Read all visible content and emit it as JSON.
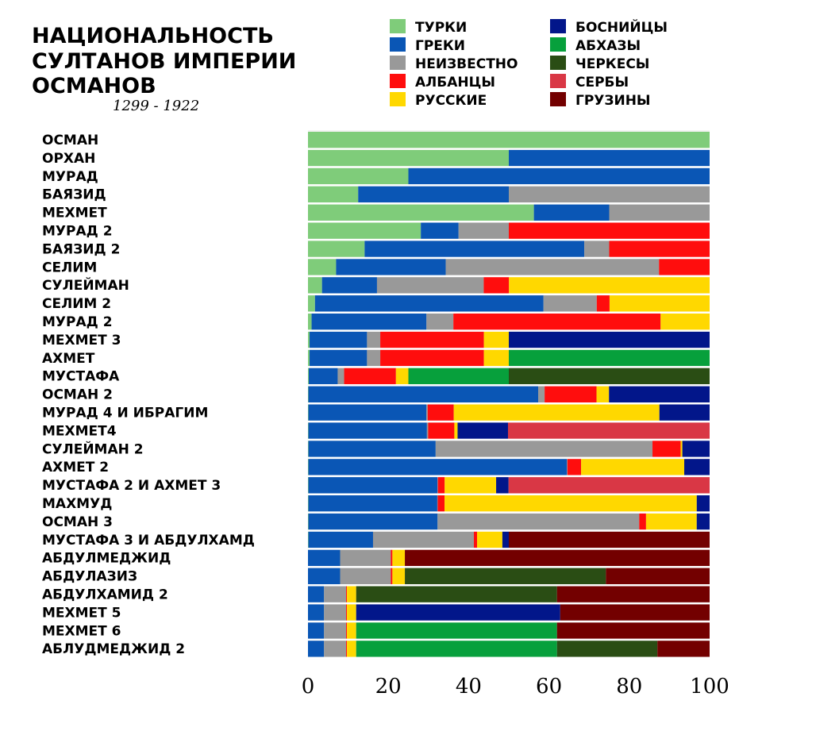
{
  "chart_data": {
    "type": "bar",
    "orientation": "horizontal",
    "stacked": true,
    "title_lines": [
      "НАЦИОНАЛЬНОСТЬ",
      "СУЛТАНОВ ИМПЕРИИ",
      "ОСМАНОВ"
    ],
    "subtitle": "1299 - 1922",
    "xlim": [
      0,
      100
    ],
    "xticks": [
      0,
      20,
      40,
      60,
      80,
      100
    ],
    "grid": false,
    "legend_position": "top-right",
    "categories": [
      "ОСМАН",
      "ОРХАН",
      "МУРАД",
      "БАЯЗИД",
      "МЕХМЕТ",
      "МУРАД 2",
      "БАЯЗИД 2",
      "СЕЛИМ",
      "СУЛЕЙМАН",
      "СЕЛИМ 2",
      "МУРАД 2",
      "МЕХМЕТ 3",
      "АХМЕТ",
      "МУСТАФА",
      "ОСМАН 2",
      "МУРАД 4 И ИБРАГИМ",
      "МЕХМЕТ4",
      "СУЛЕЙМАН 2",
      "АХМЕТ 2",
      "МУСТАФА 2 И АХМЕТ 3",
      "МАХМУД",
      "ОСМАН 3",
      "МУСТАФА 3 И АБДУЛХАМД",
      "АБДУЛМЕДЖИД",
      "АБДУЛАЗИЗ",
      "АБДУЛХАМИД 2",
      "МЕХМЕТ 5",
      "МЕХМЕТ 6",
      "АБЛУДМЕДЖИД 2"
    ],
    "series": [
      {
        "name": "ТУРКИ",
        "color": "#7fcc7a",
        "values": [
          100,
          50,
          25,
          12.5,
          56.25,
          28.1,
          14.1,
          7.0,
          3.5,
          1.75,
          0.9,
          0.4,
          0.4,
          0.2,
          0.1,
          0.1,
          0.1,
          0.1,
          0.1,
          0.1,
          0.1,
          0.1,
          0.1,
          0,
          0,
          0,
          0,
          0,
          0
        ]
      },
      {
        "name": "ГРЕКИ",
        "color": "#0a56b5",
        "values": [
          0,
          50,
          75,
          37.5,
          18.75,
          9.4,
          54.7,
          27.3,
          13.7,
          57.1,
          28.6,
          14.3,
          14.3,
          7.2,
          57.1,
          29.4,
          29.4,
          29.4,
          64.2,
          32.1,
          32.1,
          32.1,
          16.1,
          8.0,
          8.0,
          4.0,
          4.0,
          4.0,
          4.0
        ]
      },
      {
        "name": "НЕИЗВЕСТНО",
        "color": "#999999",
        "values": [
          0,
          0,
          0,
          50,
          25,
          12.5,
          6.2,
          53.1,
          26.6,
          13.3,
          6.7,
          3.3,
          3.3,
          1.6,
          1.6,
          0.3,
          0.3,
          50.1,
          0.1,
          0.1,
          0.1,
          50.1,
          25.1,
          12.6,
          12.6,
          5.5,
          5.5,
          5.5,
          5.5
        ]
      },
      {
        "name": "АЛБАНЦЫ",
        "color": "#ff0d0d",
        "values": [
          0,
          0,
          0,
          0,
          0,
          50,
          25,
          12.6,
          6.3,
          3.2,
          51.6,
          25.8,
          25.8,
          12.9,
          12.9,
          6.5,
          6.5,
          6.5,
          3.4,
          1.7,
          1.7,
          1.7,
          0.8,
          0.4,
          0.4,
          0.2,
          0.2,
          0.2,
          0.2
        ]
      },
      {
        "name": "РУССКИЕ",
        "color": "#ffd800",
        "values": [
          0,
          0,
          0,
          0,
          0,
          0,
          0,
          0,
          50,
          25,
          12.2,
          6.2,
          6.2,
          3.1,
          3.1,
          51.2,
          0.8,
          0.4,
          25.6,
          12.8,
          62.8,
          12.6,
          6.3,
          3.1,
          3.1,
          2.3,
          2.3,
          2.3,
          2.3
        ]
      },
      {
        "name": "БОСНИЙЦЫ",
        "color": "#02168a",
        "values": [
          0,
          0,
          0,
          0,
          0,
          0,
          0,
          0,
          0,
          0,
          0,
          50,
          0,
          0,
          25,
          12.5,
          12.5,
          6.3,
          6.3,
          3.1,
          3.2,
          3.2,
          1.6,
          0,
          0,
          0,
          50.8,
          0,
          0
        ]
      },
      {
        "name": "АБХАЗЫ",
        "color": "#07a03c",
        "values": [
          0,
          0,
          0,
          0,
          0,
          0,
          0,
          0,
          0,
          0,
          0,
          0,
          50,
          25,
          0,
          0,
          0,
          0,
          0,
          0,
          0,
          0,
          0,
          0,
          0,
          0,
          0,
          50,
          50
        ]
      },
      {
        "name": "ЧЕРКЕСЫ",
        "color": "#2a4d14",
        "values": [
          0,
          0,
          0,
          0,
          0,
          0,
          0,
          0,
          0,
          0,
          0,
          0,
          0,
          50,
          0,
          0,
          0,
          0,
          0,
          0,
          0,
          0,
          0,
          0,
          50,
          50,
          0,
          0,
          25
        ]
      },
      {
        "name": "СЕРБЫ",
        "color": "#d93745",
        "values": [
          0,
          0,
          0,
          0,
          0,
          0,
          0,
          0,
          0,
          0,
          0,
          0,
          0,
          0,
          0,
          0,
          50,
          0,
          0,
          50,
          0,
          0,
          0,
          0,
          0,
          0,
          0,
          0,
          0
        ]
      },
      {
        "name": "ГРУЗИНЫ",
        "color": "#730000",
        "values": [
          0,
          0,
          0,
          0,
          0,
          0,
          0,
          0,
          0,
          0,
          0,
          0,
          0,
          0,
          0,
          0,
          0,
          0,
          0,
          0,
          0,
          0,
          50,
          75.8,
          25.8,
          38,
          37.2,
          38,
          13
        ]
      }
    ]
  }
}
